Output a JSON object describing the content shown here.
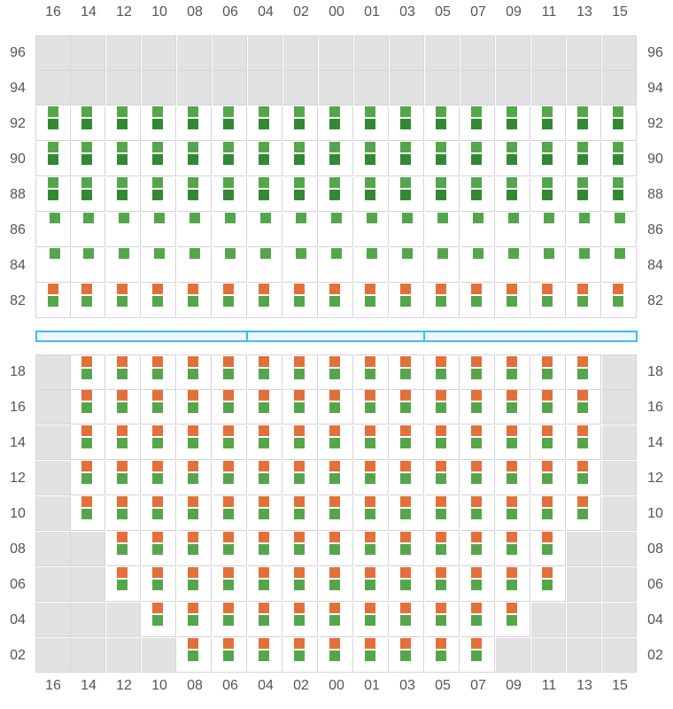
{
  "columns": [
    "16",
    "14",
    "12",
    "10",
    "08",
    "06",
    "04",
    "02",
    "00",
    "01",
    "03",
    "05",
    "07",
    "09",
    "11",
    "13",
    "15"
  ],
  "colors": {
    "light_green": "#55a64b",
    "dark_green": "#338833",
    "orange": "#e3703a",
    "void": "#e2e2e5",
    "grid": "#d4d4d8",
    "bar": "#3cbcf0"
  },
  "legend_codes": {
    "X": "unavailable",
    "GD": "light green over dark green",
    "G": "single green",
    "OG": "orange over green"
  },
  "upper": [
    {
      "label": "96",
      "cells": [
        "X",
        "X",
        "X",
        "X",
        "X",
        "X",
        "X",
        "X",
        "X",
        "X",
        "X",
        "X",
        "X",
        "X",
        "X",
        "X",
        "X"
      ]
    },
    {
      "label": "94",
      "cells": [
        "X",
        "X",
        "X",
        "X",
        "X",
        "X",
        "X",
        "X",
        "X",
        "X",
        "X",
        "X",
        "X",
        "X",
        "X",
        "X",
        "X"
      ]
    },
    {
      "label": "92",
      "cells": [
        "GD",
        "GD",
        "GD",
        "GD",
        "GD",
        "GD",
        "GD",
        "GD",
        "GD",
        "GD",
        "GD",
        "GD",
        "GD",
        "GD",
        "GD",
        "GD",
        "GD"
      ]
    },
    {
      "label": "90",
      "cells": [
        "GD",
        "GD",
        "GD",
        "GD",
        "GD",
        "GD",
        "GD",
        "GD",
        "GD",
        "GD",
        "GD",
        "GD",
        "GD",
        "GD",
        "GD",
        "GD",
        "GD"
      ]
    },
    {
      "label": "88",
      "cells": [
        "GD",
        "GD",
        "GD",
        "GD",
        "GD",
        "GD",
        "GD",
        "GD",
        "GD",
        "GD",
        "GD",
        "GD",
        "GD",
        "GD",
        "GD",
        "GD",
        "GD"
      ]
    },
    {
      "label": "86",
      "cells": [
        "G",
        "G",
        "G",
        "G",
        "G",
        "G",
        "G",
        "G",
        "G",
        "G",
        "G",
        "G",
        "G",
        "G",
        "G",
        "G",
        "G"
      ]
    },
    {
      "label": "84",
      "cells": [
        "G",
        "G",
        "G",
        "G",
        "G",
        "G",
        "G",
        "G",
        "G",
        "G",
        "G",
        "G",
        "G",
        "G",
        "G",
        "G",
        "G"
      ]
    },
    {
      "label": "82",
      "cells": [
        "OG",
        "OG",
        "OG",
        "OG",
        "OG",
        "OG",
        "OG",
        "OG",
        "OG",
        "OG",
        "OG",
        "OG",
        "OG",
        "OG",
        "OG",
        "OG",
        "OG"
      ]
    }
  ],
  "hatch_segments": 3,
  "lower": [
    {
      "label": "18",
      "cells": [
        "X",
        "OG",
        "OG",
        "OG",
        "OG",
        "OG",
        "OG",
        "OG",
        "OG",
        "OG",
        "OG",
        "OG",
        "OG",
        "OG",
        "OG",
        "OG",
        "X"
      ]
    },
    {
      "label": "16",
      "cells": [
        "X",
        "OG",
        "OG",
        "OG",
        "OG",
        "OG",
        "OG",
        "OG",
        "OG",
        "OG",
        "OG",
        "OG",
        "OG",
        "OG",
        "OG",
        "OG",
        "X"
      ]
    },
    {
      "label": "14",
      "cells": [
        "X",
        "OG",
        "OG",
        "OG",
        "OG",
        "OG",
        "OG",
        "OG",
        "OG",
        "OG",
        "OG",
        "OG",
        "OG",
        "OG",
        "OG",
        "OG",
        "X"
      ]
    },
    {
      "label": "12",
      "cells": [
        "X",
        "OG",
        "OG",
        "OG",
        "OG",
        "OG",
        "OG",
        "OG",
        "OG",
        "OG",
        "OG",
        "OG",
        "OG",
        "OG",
        "OG",
        "OG",
        "X"
      ]
    },
    {
      "label": "10",
      "cells": [
        "X",
        "OG",
        "OG",
        "OG",
        "OG",
        "OG",
        "OG",
        "OG",
        "OG",
        "OG",
        "OG",
        "OG",
        "OG",
        "OG",
        "OG",
        "OG",
        "X"
      ]
    },
    {
      "label": "08",
      "cells": [
        "X",
        "X",
        "OG",
        "OG",
        "OG",
        "OG",
        "OG",
        "OG",
        "OG",
        "OG",
        "OG",
        "OG",
        "OG",
        "OG",
        "OG",
        "X",
        "X"
      ]
    },
    {
      "label": "06",
      "cells": [
        "X",
        "X",
        "OG",
        "OG",
        "OG",
        "OG",
        "OG",
        "OG",
        "OG",
        "OG",
        "OG",
        "OG",
        "OG",
        "OG",
        "OG",
        "X",
        "X"
      ]
    },
    {
      "label": "04",
      "cells": [
        "X",
        "X",
        "X",
        "OG",
        "OG",
        "OG",
        "OG",
        "OG",
        "OG",
        "OG",
        "OG",
        "OG",
        "OG",
        "OG",
        "X",
        "X",
        "X"
      ]
    },
    {
      "label": "02",
      "cells": [
        "X",
        "X",
        "X",
        "X",
        "OG",
        "OG",
        "OG",
        "OG",
        "OG",
        "OG",
        "OG",
        "OG",
        "OG",
        "X",
        "X",
        "X",
        "X"
      ]
    }
  ]
}
